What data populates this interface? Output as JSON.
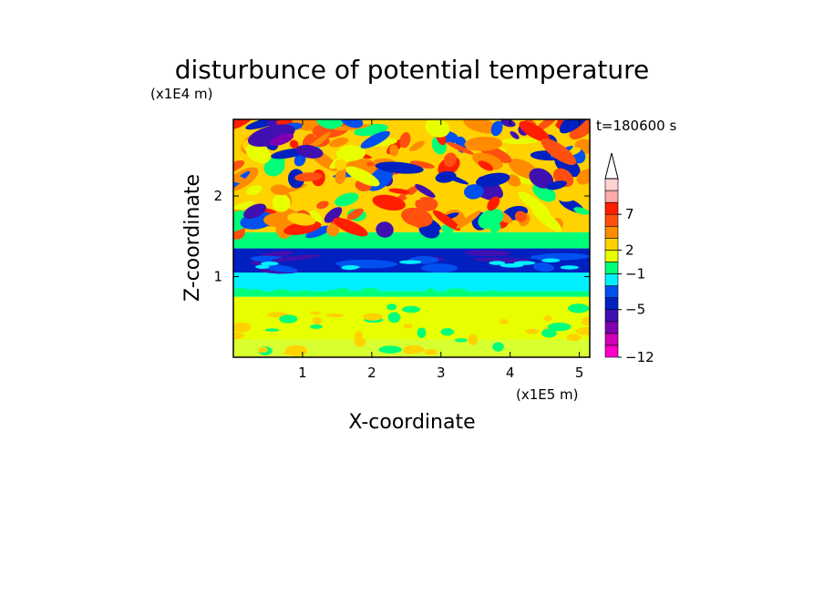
{
  "chart_data": {
    "type": "heatmap",
    "title": "disturbunce of potential temperature",
    "xlabel": "X-coordinate",
    "ylabel": "Z-coordinate",
    "x_scale_label": "(x1E5 m)",
    "y_scale_label": "(x1E4 m)",
    "time_label": "t=180600 s",
    "xlim": [
      0,
      5.15
    ],
    "ylim": [
      0,
      2.95
    ],
    "x_ticks": [
      "1",
      "2",
      "3",
      "4",
      "5"
    ],
    "y_ticks": [
      "1",
      "2"
    ],
    "colorbar": {
      "labels": [
        "7",
        "2",
        "−1",
        "−5",
        "−12"
      ],
      "colors": [
        "#ff00c8",
        "#d000b8",
        "#8000b0",
        "#4010b0",
        "#0020c0",
        "#0050f0",
        "#00f0ff",
        "#00ff78",
        "#e8ff00",
        "#ffd200",
        "#ff8c00",
        "#ff5010",
        "#ff1e00",
        "#ffaaaa",
        "#ffd2d2"
      ],
      "top_arrow": true
    },
    "bands": [
      {
        "z": [
          0.0,
          0.22
        ],
        "level": "light green / yellow"
      },
      {
        "z": [
          0.22,
          0.75
        ],
        "level": "yellow"
      },
      {
        "z": [
          0.75,
          0.82
        ],
        "level": "green"
      },
      {
        "z": [
          0.82,
          1.05
        ],
        "level": "cyan"
      },
      {
        "z": [
          1.05,
          1.35
        ],
        "level": "blue (-5 to -1)"
      },
      {
        "z": [
          1.35,
          1.55
        ],
        "level": "green"
      },
      {
        "z": [
          1.55,
          2.95
        ],
        "level": "mixed orange / red / blue waves"
      }
    ]
  }
}
